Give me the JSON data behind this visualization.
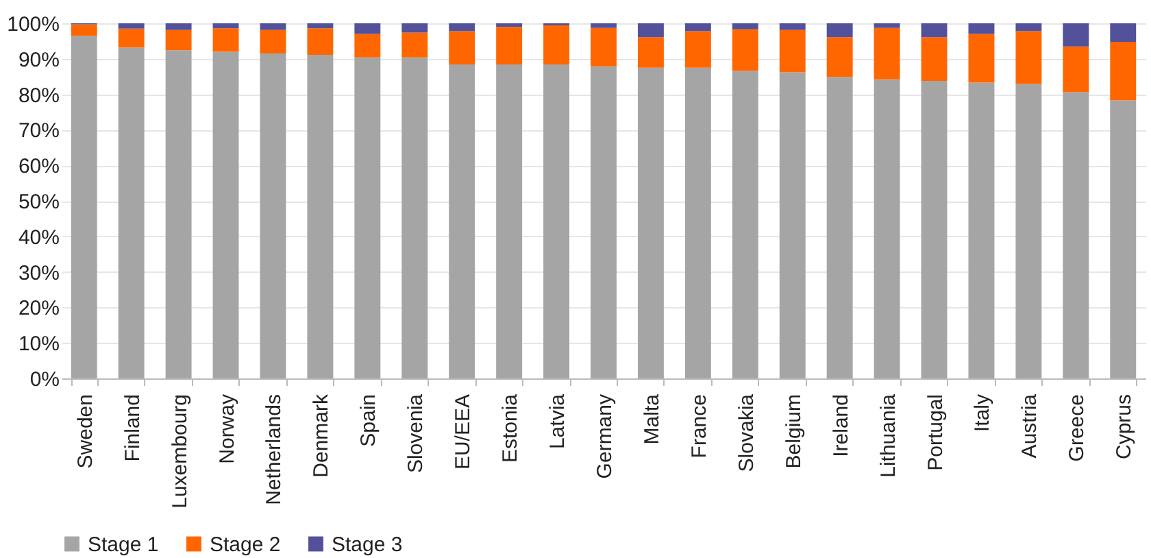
{
  "chart_data": {
    "type": "bar",
    "stacked": true,
    "categories": [
      "Sweden",
      "Finland",
      "Luxembourg",
      "Norway",
      "Netherlands",
      "Denmark",
      "Spain",
      "Slovenia",
      "EU/EEA",
      "Estonia",
      "Latvia",
      "Germany",
      "Malta",
      "France",
      "Slovakia",
      "Belgium",
      "Ireland",
      "Lithuania",
      "Portugal",
      "Italy",
      "Austria",
      "Greece",
      "Cyprus"
    ],
    "series": [
      {
        "name": "Stage 1",
        "color": "#a5a5a5",
        "values": [
          96.5,
          93.2,
          92.4,
          92.0,
          91.5,
          91.1,
          90.4,
          90.4,
          88.4,
          88.4,
          88.4,
          87.9,
          87.5,
          87.5,
          86.6,
          86.2,
          84.9,
          84.2,
          83.8,
          83.3,
          82.9,
          80.6,
          78.3
        ]
      },
      {
        "name": "Stage 2",
        "color": "#ff6600",
        "values": [
          3.2,
          5.3,
          5.7,
          6.6,
          6.6,
          7.5,
          6.6,
          7.0,
          9.4,
          10.6,
          11.0,
          10.8,
          8.6,
          10.3,
          11.7,
          11.9,
          11.2,
          14.5,
          12.3,
          13.7,
          14.9,
          12.9,
          16.5
        ]
      },
      {
        "name": "Stage 3",
        "color": "#525199",
        "values": [
          0.3,
          1.5,
          1.9,
          1.4,
          1.9,
          1.4,
          3.0,
          2.6,
          2.2,
          1.0,
          0.6,
          1.3,
          3.9,
          2.2,
          1.7,
          1.9,
          3.9,
          1.3,
          3.9,
          3.0,
          2.2,
          6.5,
          5.2
        ]
      }
    ],
    "ylim": [
      0,
      100
    ],
    "yticks": [
      {
        "value": 0,
        "label": "0%"
      },
      {
        "value": 10,
        "label": "10%"
      },
      {
        "value": 20,
        "label": "20%"
      },
      {
        "value": 30,
        "label": "30%"
      },
      {
        "value": 40,
        "label": "40%"
      },
      {
        "value": 50,
        "label": "50%"
      },
      {
        "value": 60,
        "label": "60%"
      },
      {
        "value": 70,
        "label": "70%"
      },
      {
        "value": 80,
        "label": "80%"
      },
      {
        "value": 90,
        "label": "90%"
      },
      {
        "value": 100,
        "label": "100%"
      }
    ],
    "grid": "y",
    "legend": "bottom"
  }
}
